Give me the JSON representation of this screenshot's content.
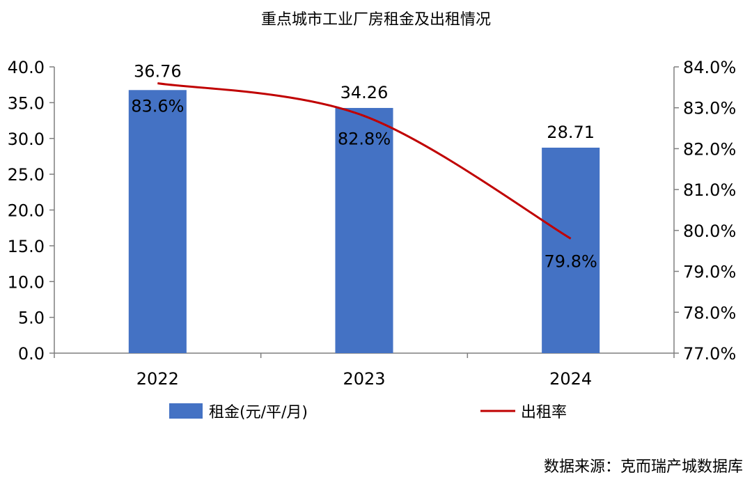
{
  "chart_data": {
    "type": "bar",
    "title": "重点城市工业厂房租金及出租情况",
    "categories": [
      "2022",
      "2023",
      "2024"
    ],
    "series": [
      {
        "name": "租金(元/平/月)",
        "type": "bar",
        "axis": "left",
        "values": [
          36.76,
          34.26,
          28.71
        ],
        "labels": [
          "36.76",
          "34.26",
          "28.71"
        ],
        "color": "#4472C4"
      },
      {
        "name": "出租率",
        "type": "line",
        "axis": "right",
        "values": [
          83.6,
          82.8,
          79.8
        ],
        "labels": [
          "83.6%",
          "82.8%",
          "79.8%"
        ],
        "color": "#C00000"
      }
    ],
    "y_left": {
      "lim": [
        0,
        40
      ],
      "ticks": [
        "0.0",
        "5.0",
        "10.0",
        "15.0",
        "20.0",
        "25.0",
        "30.0",
        "35.0",
        "40.0"
      ]
    },
    "y_right": {
      "lim": [
        77,
        84
      ],
      "ticks": [
        "77.0%",
        "78.0%",
        "79.0%",
        "80.0%",
        "81.0%",
        "82.0%",
        "83.0%",
        "84.0%"
      ]
    },
    "grid": false,
    "legend": "bottom",
    "source": "数据来源：克而瑞产城数据库"
  }
}
